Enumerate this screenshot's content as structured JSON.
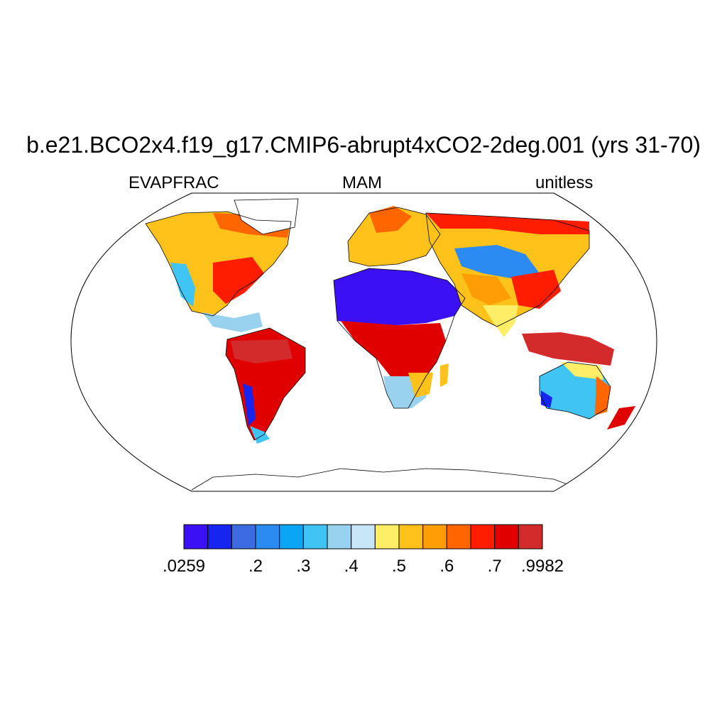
{
  "title": "b.e21.BCO2x4.f19_g17.CMIP6-abrupt4xCO2-2deg.001 (yrs 31-70)",
  "subtitle_left": "EVAPFRAC",
  "subtitle_center": "MAM",
  "subtitle_right": "unitless",
  "colors": {
    "wet": "#d32b2b",
    "mid_wet": "#ff6600",
    "mid": "#ffc21a",
    "mid_dry": "#3fc4f4",
    "dry": "#3c10f5"
  },
  "colorbar": {
    "colors": [
      "#3c10f5",
      "#1824f0",
      "#3d6be2",
      "#2c8bf2",
      "#0aa6f5",
      "#3fc4f4",
      "#98d2ef",
      "#c8e6f8",
      "#fded67",
      "#ffc21a",
      "#ff9d06",
      "#ff6600",
      "#ff1d00",
      "#e00000",
      "#d32b2b"
    ],
    "tick_labels": [
      ".0259",
      ".2",
      ".3",
      ".4",
      ".5",
      ".6",
      ".7",
      ".9982"
    ],
    "tick_index": [
      0,
      3,
      5,
      7,
      9,
      11,
      13,
      15
    ]
  }
}
